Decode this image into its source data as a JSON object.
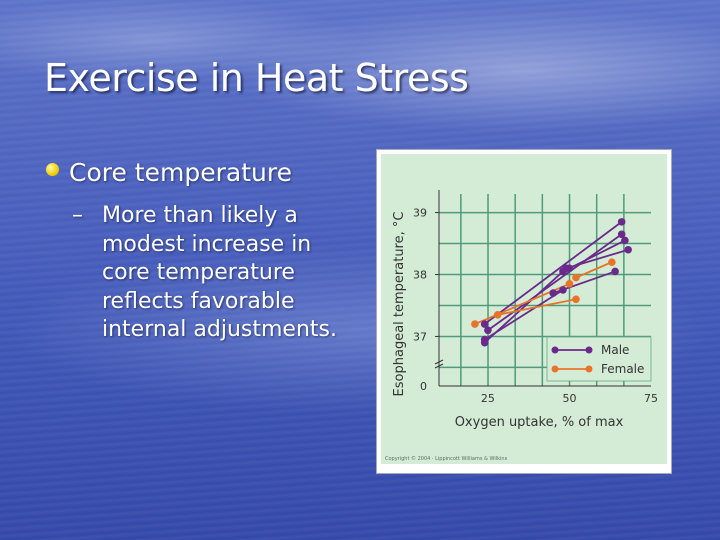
{
  "slide": {
    "title": "Exercise in Heat Stress",
    "bullet_1": "Core temperature",
    "dash": "–",
    "bullet_2": "More than likely a modest increase in core temperature reflects favorable internal adjustments."
  },
  "figure": {
    "copyright": "Copyright © 2004 · Lippincott Williams & Wilkins"
  },
  "chart_data": {
    "type": "line",
    "xlabel": "Oxygen uptake, % of max",
    "ylabel": "Esophageal temperature, °C",
    "x_ticks": [
      25,
      50,
      75
    ],
    "y_ticks": [
      37,
      38,
      39
    ],
    "y_zero_label": "0",
    "xlim": [
      10,
      75
    ],
    "ylim": [
      36.2,
      39.3
    ],
    "grid": true,
    "legend_position": "bottom-right",
    "colors": {
      "male": "#6a2a8c",
      "female": "#e8742a",
      "plot_bg": "#d4ecd6",
      "grid": "#4f9a7a"
    },
    "series": [
      {
        "name": "Male",
        "color": "#6a2a8c",
        "lines": [
          [
            [
              24,
              37.2
            ],
            [
              66,
              38.85
            ]
          ],
          [
            [
              25,
              37.1
            ],
            [
              66,
              38.65
            ]
          ],
          [
            [
              24,
              36.95
            ],
            [
              48,
              37.75
            ]
          ],
          [
            [
              24,
              36.9
            ],
            [
              48,
              38.05
            ]
          ],
          [
            [
              49,
              38.1
            ],
            [
              68,
              38.4
            ]
          ],
          [
            [
              50,
              38.1
            ],
            [
              67,
              38.55
            ]
          ],
          [
            [
              45,
              37.7
            ],
            [
              64,
              38.05
            ]
          ]
        ]
      },
      {
        "name": "Female",
        "color": "#e8742a",
        "lines": [
          [
            [
              21,
              37.2
            ],
            [
              50,
              37.85
            ]
          ],
          [
            [
              28,
              37.35
            ],
            [
              52,
              37.6
            ]
          ],
          [
            [
              52,
              37.95
            ],
            [
              63,
              38.2
            ]
          ]
        ]
      }
    ]
  }
}
